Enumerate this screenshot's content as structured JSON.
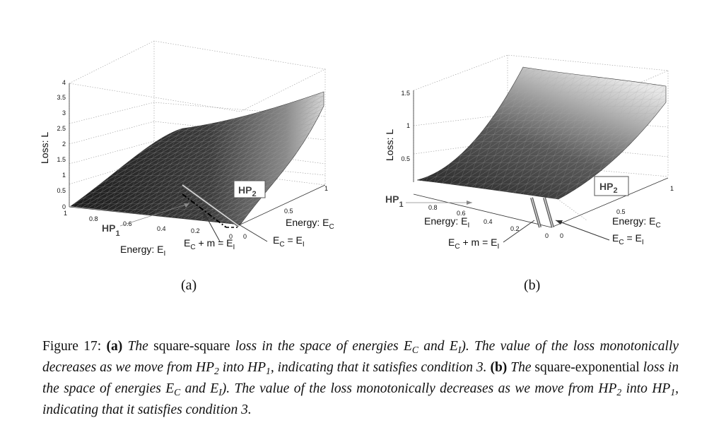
{
  "panel_a": {
    "label": "(a)",
    "z_axis_label": "Loss: L",
    "z_ticks": [
      "0",
      "0.5",
      "1",
      "1.5",
      "2",
      "2.5",
      "3",
      "3.5",
      "4"
    ],
    "ei_ticks": [
      "1",
      "0.8",
      "0.6",
      "0.4",
      "0.2",
      "0"
    ],
    "ec_ticks": [
      "0",
      "0.5",
      "1"
    ],
    "ei_label": "Energy: E",
    "ei_sub": "I",
    "ec_label": "Energy: E",
    "ec_sub": "C",
    "hp1": "HP",
    "hp1_sub": "1",
    "hp2": "HP",
    "hp2_sub": "2",
    "margin_line_label_1": "E",
    "margin_line_label_sub1": "C",
    "margin_line_label_2": " + m = E",
    "margin_line_label_sub2": "I",
    "equal_line_label_1": "E",
    "equal_line_label_sub1": "C",
    "equal_line_label_2": "  = E",
    "equal_line_label_sub2": "I"
  },
  "panel_b": {
    "label": "(b)",
    "z_axis_label": "Loss: L",
    "z_ticks": [
      "0.5",
      "1",
      "1.5"
    ],
    "ei_ticks": [
      "0.8",
      "0.6",
      "0.4",
      "0.2",
      "0"
    ],
    "ec_ticks": [
      "0",
      "0.5",
      "1"
    ],
    "ei_label": "Energy: E",
    "ei_sub": "I",
    "ec_label": "Energy: E",
    "ec_sub": "C",
    "hp1": "HP",
    "hp1_sub": "1",
    "hp2": "HP",
    "hp2_sub": "2",
    "margin_line_label_1": "E",
    "margin_line_label_sub1": "C",
    "margin_line_label_2": " + m = E",
    "margin_line_label_sub2": "I",
    "equal_line_label_1": "E",
    "equal_line_label_sub1": "C",
    "equal_line_label_2": "  = E",
    "equal_line_label_sub2": "I"
  },
  "caption": {
    "fig_number": "Figure 17:",
    "a_tag": "(a)",
    "a_the": "The",
    "a_name": "square-square",
    "a_text1": "loss in the space of energies",
    "e": "E",
    "c": "C",
    "and": "and",
    "i": "I",
    "a_text2": "). The value of the loss monotonically decreases as we move from",
    "hp": "HP",
    "two": "2",
    "into": "into",
    "one": "1",
    "a_text3": ", indicating that it satisfies condition 3.",
    "b_tag": "(b)",
    "b_the": "The",
    "b_name": "square-exponential",
    "b_text1": "loss in the space of energies",
    "b_text2": "). The value of the loss monotonically decreases as we move from",
    "b_text3": ", indicating that it satisfies condition 3."
  }
}
